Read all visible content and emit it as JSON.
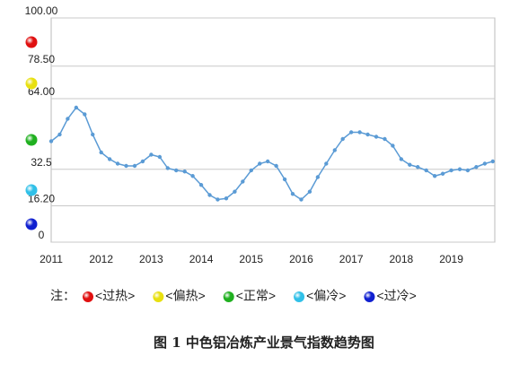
{
  "chart_data": {
    "type": "line",
    "title": "图 1  中色铝冶炼产业景气指数趋势图",
    "x": [
      2011.0,
      2011.17,
      2011.33,
      2011.5,
      2011.67,
      2011.83,
      2012.0,
      2012.17,
      2012.33,
      2012.5,
      2012.67,
      2012.83,
      2013.0,
      2013.17,
      2013.33,
      2013.5,
      2013.67,
      2013.83,
      2014.0,
      2014.17,
      2014.33,
      2014.5,
      2014.67,
      2014.83,
      2015.0,
      2015.17,
      2015.33,
      2015.5,
      2015.67,
      2015.83,
      2016.0,
      2016.17,
      2016.33,
      2016.5,
      2016.67,
      2016.83,
      2017.0,
      2017.17,
      2017.33,
      2017.5,
      2017.67,
      2017.83,
      2018.0,
      2018.17,
      2018.33,
      2018.5,
      2018.67,
      2018.83,
      2019.0,
      2019.17,
      2019.33,
      2019.5,
      2019.67,
      2019.83
    ],
    "series": [
      {
        "color": "#5b9bd5",
        "values": [
          45,
          48,
          55,
          60,
          57,
          48,
          40,
          37,
          35,
          34,
          34,
          36,
          39,
          38,
          33,
          32,
          31.5,
          29.5,
          25.5,
          21,
          19,
          19.5,
          22.5,
          27,
          32,
          35,
          36,
          34,
          28,
          21.5,
          19,
          22.5,
          29,
          35,
          41,
          46,
          49,
          49,
          48,
          47,
          46,
          43,
          37,
          34.5,
          33.5,
          32,
          29.5,
          30.5,
          32,
          32.5,
          32,
          33.5,
          35,
          36
        ]
      }
    ],
    "xlim": [
      2011,
      2019.87
    ],
    "xticks": [
      2011,
      2012,
      2013,
      2014,
      2015,
      2016,
      2017,
      2018,
      2019
    ],
    "ylim": [
      0,
      100
    ],
    "yticks": [
      0,
      {
        "value": 16.2,
        "label": "16.20"
      },
      32.5,
      {
        "value": 64,
        "label": "64.00"
      },
      {
        "value": 78.5,
        "label": "78.50"
      },
      {
        "value": 100,
        "label": "100.00"
      }
    ],
    "grid": true,
    "legend": {
      "label": "注：",
      "items": [
        {
          "name": "<过热>",
          "color": "#e01010"
        },
        {
          "name": "<偏热>",
          "color": "#e8e010"
        },
        {
          "name": "<正常>",
          "color": "#20b020"
        },
        {
          "name": "<偏冷>",
          "color": "#30c0e8"
        },
        {
          "name": "<过冷>",
          "color": "#1020d0"
        }
      ]
    }
  }
}
